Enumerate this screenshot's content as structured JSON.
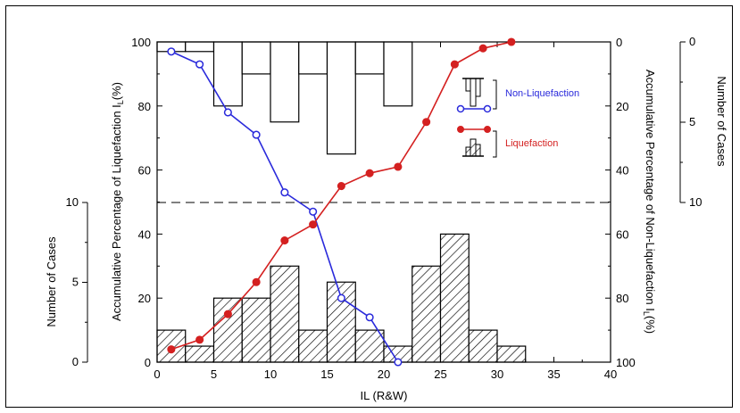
{
  "chart_data": {
    "type": "bar",
    "x": [
      1.25,
      3.75,
      6.25,
      8.75,
      11.25,
      13.75,
      16.25,
      18.75,
      21.25,
      23.75,
      26.25,
      28.75,
      31.25
    ],
    "bin_width": 2.5,
    "xlabel": "IL (R&W)",
    "xlim": [
      0,
      40
    ],
    "xticks": [
      0,
      5,
      10,
      15,
      20,
      25,
      30,
      35,
      40
    ],
    "left_ylabel": "Accumulative Percentage of Liquefaction I",
    "left_ylabel_sub": "L",
    "left_ylabel_tail": "(%)",
    "left_ylim": [
      0,
      100
    ],
    "left_yticks": [
      0,
      20,
      40,
      60,
      80,
      100
    ],
    "right_ylabel": "Accumulative Percentage of Non-Liquefaction I",
    "right_ylabel_sub": "L",
    "right_ylabel_tail": "(%)",
    "right_ylim": [
      100,
      0
    ],
    "right_yticks": [
      0,
      20,
      40,
      60,
      80,
      100
    ],
    "lower_count_axis": {
      "label": "Number of Cases",
      "ticks": [
        0,
        5,
        10
      ],
      "range": [
        0,
        10
      ]
    },
    "upper_count_axis": {
      "label": "Number of Cases",
      "ticks": [
        0,
        5,
        10
      ],
      "range": [
        0,
        10
      ]
    },
    "reference_line": {
      "y": 50,
      "style": "dashed"
    },
    "series": [
      {
        "name": "Non-Liquefaction",
        "kind": "histogram",
        "axis": "upper_count",
        "values": [
          3,
          3,
          20,
          10,
          25,
          10,
          35,
          10,
          20,
          0,
          0,
          0,
          0
        ],
        "color": "#000000"
      },
      {
        "name": "Liquefaction",
        "kind": "histogram",
        "axis": "lower_count",
        "values": [
          10,
          5,
          20,
          20,
          30,
          10,
          25,
          10,
          5,
          30,
          40,
          10,
          5
        ],
        "color": "#000000"
      },
      {
        "name": "Non-Liquefaction",
        "kind": "line",
        "axis": "right",
        "x": [
          1.25,
          3.75,
          6.25,
          8.75,
          11.25,
          13.75,
          16.25,
          18.75,
          21.25
        ],
        "values": [
          3,
          7,
          22,
          29,
          47,
          53,
          80,
          86,
          100
        ],
        "color": "#2a2adb"
      },
      {
        "name": "Liquefaction",
        "kind": "line",
        "axis": "left",
        "x": [
          1.25,
          3.75,
          6.25,
          8.75,
          11.25,
          13.75,
          16.25,
          18.75,
          21.25,
          23.75,
          26.25,
          28.75,
          31.25
        ],
        "values": [
          4,
          7,
          15,
          25,
          38,
          43,
          55,
          59,
          61,
          75,
          93,
          98,
          100
        ],
        "color": "#d42020"
      }
    ],
    "legend": {
      "placement": "top-right",
      "items": [
        "Non-Liquefaction",
        "Liquefaction"
      ]
    }
  }
}
